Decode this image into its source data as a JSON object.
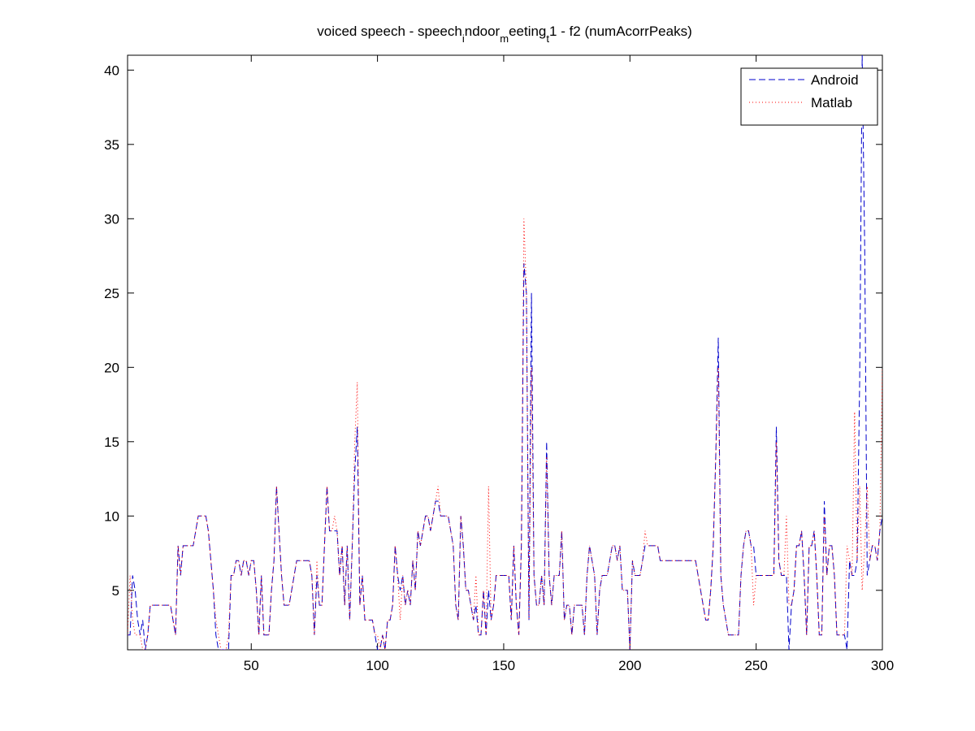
{
  "chart_data": {
    "type": "line",
    "title": [
      "voiced speech - speech",
      "i",
      "ndoor",
      "m",
      "eeting",
      "t",
      "1 - f2 (numAcorrPeaks)"
    ],
    "x": [
      1,
      2,
      3,
      4,
      5,
      6,
      7,
      8,
      9,
      10,
      11,
      12,
      13,
      14,
      15,
      16,
      17,
      18,
      19,
      20,
      21,
      22,
      23,
      24,
      25,
      26,
      27,
      28,
      29,
      30,
      31,
      32,
      33,
      34,
      35,
      36,
      37,
      38,
      39,
      40,
      41,
      42,
      43,
      44,
      45,
      46,
      47,
      48,
      49,
      50,
      51,
      52,
      53,
      54,
      55,
      56,
      57,
      58,
      59,
      60,
      61,
      62,
      63,
      64,
      65,
      66,
      67,
      68,
      69,
      70,
      71,
      72,
      73,
      74,
      75,
      76,
      77,
      78,
      79,
      80,
      81,
      82,
      83,
      84,
      85,
      86,
      87,
      88,
      89,
      90,
      91,
      92,
      93,
      94,
      95,
      96,
      97,
      98,
      99,
      100,
      101,
      102,
      103,
      104,
      105,
      106,
      107,
      108,
      109,
      110,
      111,
      112,
      113,
      114,
      115,
      116,
      117,
      118,
      119,
      120,
      121,
      122,
      123,
      124,
      125,
      126,
      127,
      128,
      129,
      130,
      131,
      132,
      133,
      134,
      135,
      136,
      137,
      138,
      139,
      140,
      141,
      142,
      143,
      144,
      145,
      146,
      147,
      148,
      149,
      150,
      151,
      152,
      153,
      154,
      155,
      156,
      157,
      158,
      159,
      160,
      161,
      162,
      163,
      164,
      165,
      166,
      167,
      168,
      169,
      170,
      171,
      172,
      173,
      174,
      175,
      176,
      177,
      178,
      179,
      180,
      181,
      182,
      183,
      184,
      185,
      186,
      187,
      188,
      189,
      190,
      191,
      192,
      193,
      194,
      195,
      196,
      197,
      198,
      199,
      200,
      201,
      202,
      203,
      204,
      205,
      206,
      207,
      208,
      209,
      210,
      211,
      212,
      213,
      214,
      215,
      216,
      217,
      218,
      219,
      220,
      221,
      222,
      223,
      224,
      225,
      226,
      227,
      228,
      229,
      230,
      231,
      232,
      233,
      234,
      235,
      236,
      237,
      238,
      239,
      240,
      241,
      242,
      243,
      244,
      245,
      246,
      247,
      248,
      249,
      250,
      251,
      252,
      253,
      254,
      255,
      256,
      257,
      258,
      259,
      260,
      261,
      262,
      263,
      264,
      265,
      266,
      267,
      268,
      269,
      270,
      271,
      272,
      273,
      274,
      275,
      276,
      277,
      278,
      279,
      280,
      281,
      282,
      283,
      284,
      285,
      286,
      287,
      288,
      289,
      290,
      291,
      292,
      293,
      294,
      295,
      296,
      297,
      298,
      299,
      300
    ],
    "series": [
      {
        "name": "Android",
        "color": "#0000cc",
        "dash": "8,4",
        "values": [
          2,
          2,
          6,
          5,
          3,
          2,
          3,
          1,
          2,
          4,
          4,
          4,
          4,
          4,
          4,
          4,
          4,
          4,
          3,
          2,
          8,
          6,
          8,
          8,
          8,
          8,
          8,
          9,
          10,
          10,
          10,
          10,
          9,
          7,
          5,
          2,
          1,
          1,
          1,
          1,
          1,
          6,
          6,
          7,
          7,
          6,
          7,
          7,
          6,
          7,
          7,
          5,
          2,
          6,
          2,
          2,
          2,
          5,
          7,
          12,
          9,
          6,
          4,
          4,
          4,
          5,
          6,
          7,
          7,
          7,
          7,
          7,
          7,
          6,
          2,
          6,
          4,
          4,
          8,
          12,
          9,
          9,
          9,
          9,
          6,
          8,
          4,
          8,
          3,
          8,
          13,
          16,
          4,
          6,
          3,
          3,
          3,
          3,
          2,
          1,
          1,
          2,
          1,
          3,
          3,
          4,
          8,
          6,
          5,
          6,
          4,
          5,
          4,
          7,
          5,
          9,
          8,
          9,
          10,
          10,
          9,
          10,
          11,
          11,
          10,
          10,
          10,
          10,
          9,
          8,
          4,
          3,
          10,
          8,
          5,
          5,
          4,
          3,
          4,
          2,
          2,
          5,
          2,
          5,
          3,
          4,
          6,
          6,
          6,
          6,
          6,
          6,
          3,
          8,
          4,
          2,
          8,
          27,
          25,
          3,
          25,
          6,
          4,
          4,
          6,
          4,
          15,
          6,
          4,
          6,
          6,
          6,
          9,
          3,
          4,
          4,
          2,
          4,
          4,
          4,
          4,
          2,
          6,
          8,
          7,
          6,
          2,
          5,
          6,
          6,
          6,
          7,
          8,
          8,
          7,
          8,
          5,
          5,
          5,
          1,
          7,
          6,
          6,
          6,
          7,
          8,
          8,
          8,
          8,
          8,
          8,
          7,
          7,
          7,
          7,
          7,
          7,
          7,
          7,
          7,
          7,
          7,
          7,
          7,
          7,
          7,
          6,
          5,
          4,
          3,
          3,
          5,
          8,
          14,
          22,
          6,
          4,
          3,
          2,
          2,
          2,
          2,
          2,
          6,
          8,
          9,
          9,
          8,
          8,
          6,
          6,
          6,
          6,
          6,
          6,
          6,
          6,
          16,
          7,
          6,
          6,
          6,
          1,
          4,
          5,
          8,
          8,
          9,
          6,
          2,
          8,
          8,
          9,
          6,
          2,
          2,
          11,
          6,
          8,
          8,
          6,
          2,
          2,
          2,
          2,
          1,
          7,
          6,
          6,
          7,
          19,
          41,
          28,
          6,
          7,
          8,
          8,
          7,
          9,
          10
        ]
      },
      {
        "name": "Matlab",
        "color": "#ff0000",
        "dash": "1,3",
        "values": [
          2,
          6,
          3,
          2,
          2,
          2,
          1,
          1,
          2,
          4,
          4,
          4,
          4,
          4,
          4,
          4,
          4,
          4,
          3,
          2,
          8,
          6,
          8,
          8,
          8,
          8,
          8,
          9,
          10,
          10,
          10,
          10,
          9,
          7,
          5,
          3,
          2,
          1,
          1,
          1,
          2,
          6,
          6,
          7,
          7,
          6,
          7,
          7,
          6,
          7,
          7,
          5,
          2,
          6,
          2,
          2,
          2,
          5,
          7,
          12,
          9,
          6,
          4,
          4,
          4,
          5,
          6,
          7,
          7,
          7,
          7,
          7,
          7,
          6,
          2,
          7,
          4,
          4,
          8,
          12,
          9,
          9,
          10,
          9,
          6,
          8,
          4,
          8,
          3,
          8,
          15,
          19,
          4,
          6,
          3,
          3,
          3,
          3,
          2,
          2,
          1,
          2,
          1,
          3,
          3,
          4,
          8,
          6,
          3,
          6,
          4,
          5,
          4,
          7,
          5,
          9,
          8,
          9,
          10,
          10,
          9,
          10,
          11,
          12,
          10,
          10,
          10,
          10,
          9,
          8,
          4,
          3,
          10,
          8,
          5,
          5,
          4,
          3,
          6,
          2,
          2,
          5,
          2,
          12,
          3,
          4,
          6,
          6,
          6,
          6,
          6,
          6,
          3,
          8,
          4,
          2,
          8,
          30,
          25,
          3,
          20,
          6,
          4,
          4,
          6,
          4,
          14,
          6,
          4,
          6,
          6,
          6,
          9,
          3,
          4,
          4,
          2,
          4,
          4,
          4,
          4,
          2,
          6,
          8,
          7,
          6,
          2,
          5,
          6,
          6,
          6,
          7,
          8,
          8,
          7,
          8,
          5,
          5,
          5,
          1,
          7,
          6,
          6,
          6,
          7,
          9,
          8,
          8,
          8,
          8,
          8,
          7,
          7,
          7,
          7,
          7,
          7,
          7,
          7,
          7,
          7,
          7,
          7,
          7,
          7,
          7,
          6,
          5,
          4,
          3,
          3,
          5,
          8,
          14,
          20,
          6,
          4,
          3,
          2,
          2,
          2,
          2,
          2,
          6,
          8,
          9,
          9,
          8,
          4,
          6,
          6,
          6,
          6,
          6,
          6,
          6,
          6,
          15,
          7,
          6,
          6,
          10,
          4,
          4,
          5,
          8,
          8,
          9,
          6,
          2,
          8,
          8,
          9,
          6,
          2,
          2,
          10,
          6,
          8,
          8,
          6,
          2,
          2,
          2,
          2,
          8,
          7,
          6,
          17,
          7,
          12,
          5,
          8,
          12,
          7,
          8,
          8,
          7,
          9,
          20
        ]
      }
    ],
    "xlim": [
      1,
      300
    ],
    "ylim": [
      1,
      41
    ],
    "xticks": [
      50,
      100,
      150,
      200,
      250,
      300
    ],
    "yticks": [
      5,
      10,
      15,
      20,
      25,
      30,
      35,
      40
    ],
    "legend": "upper right"
  }
}
